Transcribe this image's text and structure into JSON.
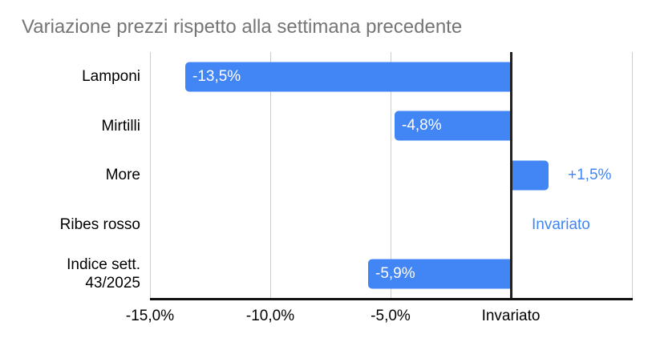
{
  "chart_data": {
    "type": "bar",
    "orientation": "horizontal",
    "title": "Variazione prezzi rispetto alla settimana precedente",
    "categories": [
      "Lamponi",
      "Mirtilli",
      "More",
      "Ribes rosso",
      "Indice sett.\n43/2025"
    ],
    "values": [
      -13.5,
      -4.8,
      1.5,
      0,
      -5.9
    ],
    "data_labels": [
      "-13,5%",
      "-4,8%",
      "+1,5%",
      "Invariato",
      "-5,9%"
    ],
    "x_tick_labels": [
      "-15,0%",
      "-10,0%",
      "-5,0%",
      "Invariato"
    ],
    "x_tick_values": [
      -15,
      -10,
      -5,
      0
    ],
    "xlim": [
      -15,
      5
    ],
    "grid": true,
    "legend": "none",
    "bar_color": "#4285f4",
    "inside_label_color": "#ffffff",
    "outside_label_color": "#4285f4",
    "title_color": "#757575",
    "axis_label_color": "#000000",
    "gridline_color": "#cccccc"
  }
}
